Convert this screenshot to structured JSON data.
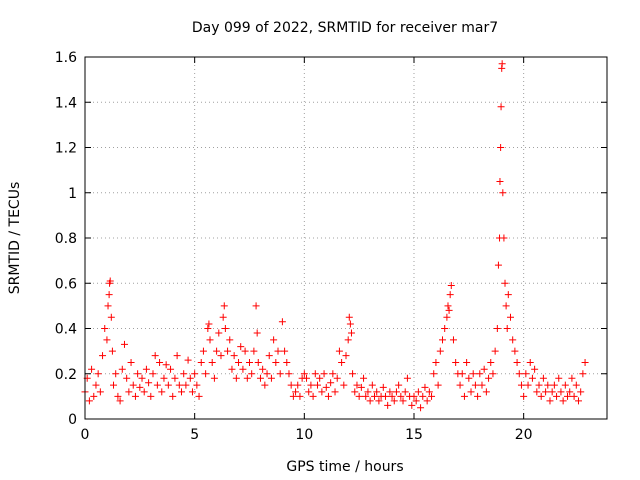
{
  "chart_data": {
    "type": "scatter",
    "title": "Day 099 of 2022, SRMTID for receiver mar7",
    "xlabel": "GPS time / hours",
    "ylabel": "SRMTID / TECUs",
    "xlim": [
      0,
      23.8
    ],
    "ylim": [
      0,
      1.6
    ],
    "x_ticks": [
      0,
      5,
      10,
      15,
      20
    ],
    "x_tick_labels": [
      "0",
      "5",
      "10",
      "15",
      "20"
    ],
    "y_ticks": [
      0,
      0.2,
      0.4,
      0.6,
      0.8,
      1.0,
      1.2,
      1.4,
      1.6
    ],
    "y_tick_labels": [
      "0",
      "0.2",
      "0.4",
      "0.6",
      "0.8",
      "1",
      "1.2",
      "1.4",
      "1.6"
    ],
    "grid": true,
    "marker": "plus",
    "color": "#ff0000",
    "series": [
      {
        "name": "SRMTID",
        "points": [
          [
            0.0,
            0.12
          ],
          [
            0.1,
            0.18
          ],
          [
            0.2,
            0.08
          ],
          [
            0.3,
            0.22
          ],
          [
            0.4,
            0.1
          ],
          [
            0.5,
            0.15
          ],
          [
            0.6,
            0.2
          ],
          [
            0.7,
            0.12
          ],
          [
            0.8,
            0.28
          ],
          [
            0.9,
            0.4
          ],
          [
            1.0,
            0.35
          ],
          [
            1.05,
            0.5
          ],
          [
            1.1,
            0.55
          ],
          [
            1.12,
            0.6
          ],
          [
            1.15,
            0.61
          ],
          [
            1.2,
            0.45
          ],
          [
            1.25,
            0.3
          ],
          [
            1.3,
            0.15
          ],
          [
            1.4,
            0.2
          ],
          [
            1.5,
            0.1
          ],
          [
            1.6,
            0.08
          ],
          [
            1.7,
            0.22
          ],
          [
            1.8,
            0.33
          ],
          [
            1.9,
            0.18
          ],
          [
            2.0,
            0.12
          ],
          [
            2.1,
            0.25
          ],
          [
            2.2,
            0.15
          ],
          [
            2.3,
            0.1
          ],
          [
            2.4,
            0.2
          ],
          [
            2.5,
            0.14
          ],
          [
            2.6,
            0.18
          ],
          [
            2.7,
            0.12
          ],
          [
            2.8,
            0.22
          ],
          [
            2.9,
            0.16
          ],
          [
            3.0,
            0.1
          ],
          [
            3.1,
            0.2
          ],
          [
            3.2,
            0.28
          ],
          [
            3.3,
            0.15
          ],
          [
            3.4,
            0.25
          ],
          [
            3.5,
            0.12
          ],
          [
            3.6,
            0.18
          ],
          [
            3.7,
            0.24
          ],
          [
            3.8,
            0.15
          ],
          [
            3.9,
            0.22
          ],
          [
            4.0,
            0.1
          ],
          [
            4.1,
            0.18
          ],
          [
            4.2,
            0.28
          ],
          [
            4.3,
            0.15
          ],
          [
            4.4,
            0.12
          ],
          [
            4.5,
            0.2
          ],
          [
            4.6,
            0.15
          ],
          [
            4.7,
            0.26
          ],
          [
            4.8,
            0.18
          ],
          [
            4.9,
            0.12
          ],
          [
            5.0,
            0.2
          ],
          [
            5.1,
            0.15
          ],
          [
            5.2,
            0.1
          ],
          [
            5.3,
            0.25
          ],
          [
            5.4,
            0.3
          ],
          [
            5.5,
            0.2
          ],
          [
            5.6,
            0.4
          ],
          [
            5.65,
            0.42
          ],
          [
            5.7,
            0.35
          ],
          [
            5.8,
            0.25
          ],
          [
            5.9,
            0.18
          ],
          [
            6.0,
            0.3
          ],
          [
            6.1,
            0.38
          ],
          [
            6.2,
            0.28
          ],
          [
            6.3,
            0.45
          ],
          [
            6.35,
            0.5
          ],
          [
            6.4,
            0.4
          ],
          [
            6.5,
            0.3
          ],
          [
            6.6,
            0.35
          ],
          [
            6.7,
            0.22
          ],
          [
            6.8,
            0.28
          ],
          [
            6.9,
            0.18
          ],
          [
            7.0,
            0.25
          ],
          [
            7.1,
            0.32
          ],
          [
            7.2,
            0.22
          ],
          [
            7.3,
            0.3
          ],
          [
            7.4,
            0.18
          ],
          [
            7.5,
            0.25
          ],
          [
            7.6,
            0.2
          ],
          [
            7.7,
            0.3
          ],
          [
            7.8,
            0.5
          ],
          [
            7.85,
            0.38
          ],
          [
            7.9,
            0.25
          ],
          [
            8.0,
            0.18
          ],
          [
            8.1,
            0.22
          ],
          [
            8.2,
            0.15
          ],
          [
            8.3,
            0.2
          ],
          [
            8.4,
            0.28
          ],
          [
            8.5,
            0.18
          ],
          [
            8.6,
            0.35
          ],
          [
            8.7,
            0.25
          ],
          [
            8.8,
            0.3
          ],
          [
            8.9,
            0.2
          ],
          [
            9.0,
            0.43
          ],
          [
            9.1,
            0.3
          ],
          [
            9.2,
            0.25
          ],
          [
            9.3,
            0.2
          ],
          [
            9.4,
            0.15
          ],
          [
            9.5,
            0.1
          ],
          [
            9.6,
            0.12
          ],
          [
            9.7,
            0.15
          ],
          [
            9.8,
            0.1
          ],
          [
            9.9,
            0.18
          ],
          [
            10.0,
            0.2
          ],
          [
            10.1,
            0.18
          ],
          [
            10.2,
            0.12
          ],
          [
            10.3,
            0.15
          ],
          [
            10.4,
            0.1
          ],
          [
            10.5,
            0.2
          ],
          [
            10.6,
            0.15
          ],
          [
            10.7,
            0.18
          ],
          [
            10.8,
            0.12
          ],
          [
            10.9,
            0.2
          ],
          [
            11.0,
            0.14
          ],
          [
            11.1,
            0.1
          ],
          [
            11.2,
            0.16
          ],
          [
            11.3,
            0.2
          ],
          [
            11.4,
            0.12
          ],
          [
            11.5,
            0.18
          ],
          [
            11.6,
            0.3
          ],
          [
            11.7,
            0.25
          ],
          [
            11.8,
            0.15
          ],
          [
            11.9,
            0.28
          ],
          [
            12.0,
            0.35
          ],
          [
            12.05,
            0.45
          ],
          [
            12.1,
            0.42
          ],
          [
            12.15,
            0.38
          ],
          [
            12.2,
            0.2
          ],
          [
            12.3,
            0.12
          ],
          [
            12.4,
            0.15
          ],
          [
            12.5,
            0.1
          ],
          [
            12.6,
            0.14
          ],
          [
            12.7,
            0.18
          ],
          [
            12.8,
            0.1
          ],
          [
            12.9,
            0.12
          ],
          [
            13.0,
            0.08
          ],
          [
            13.1,
            0.15
          ],
          [
            13.2,
            0.1
          ],
          [
            13.3,
            0.12
          ],
          [
            13.4,
            0.08
          ],
          [
            13.5,
            0.1
          ],
          [
            13.6,
            0.14
          ],
          [
            13.7,
            0.1
          ],
          [
            13.8,
            0.06
          ],
          [
            13.9,
            0.12
          ],
          [
            14.0,
            0.1
          ],
          [
            14.1,
            0.08
          ],
          [
            14.2,
            0.12
          ],
          [
            14.3,
            0.15
          ],
          [
            14.4,
            0.1
          ],
          [
            14.5,
            0.08
          ],
          [
            14.6,
            0.12
          ],
          [
            14.7,
            0.18
          ],
          [
            14.8,
            0.1
          ],
          [
            14.9,
            0.06
          ],
          [
            15.0,
            0.1
          ],
          [
            15.1,
            0.08
          ],
          [
            15.2,
            0.12
          ],
          [
            15.3,
            0.05
          ],
          [
            15.4,
            0.1
          ],
          [
            15.5,
            0.14
          ],
          [
            15.6,
            0.08
          ],
          [
            15.7,
            0.12
          ],
          [
            15.8,
            0.1
          ],
          [
            15.9,
            0.2
          ],
          [
            16.0,
            0.25
          ],
          [
            16.1,
            0.15
          ],
          [
            16.2,
            0.3
          ],
          [
            16.3,
            0.35
          ],
          [
            16.4,
            0.4
          ],
          [
            16.5,
            0.45
          ],
          [
            16.55,
            0.5
          ],
          [
            16.6,
            0.48
          ],
          [
            16.65,
            0.55
          ],
          [
            16.7,
            0.59
          ],
          [
            16.8,
            0.35
          ],
          [
            16.9,
            0.25
          ],
          [
            17.0,
            0.2
          ],
          [
            17.1,
            0.15
          ],
          [
            17.2,
            0.2
          ],
          [
            17.3,
            0.1
          ],
          [
            17.4,
            0.25
          ],
          [
            17.5,
            0.18
          ],
          [
            17.6,
            0.12
          ],
          [
            17.7,
            0.2
          ],
          [
            17.8,
            0.15
          ],
          [
            17.9,
            0.1
          ],
          [
            18.0,
            0.2
          ],
          [
            18.1,
            0.15
          ],
          [
            18.2,
            0.22
          ],
          [
            18.3,
            0.12
          ],
          [
            18.4,
            0.18
          ],
          [
            18.5,
            0.25
          ],
          [
            18.6,
            0.2
          ],
          [
            18.7,
            0.3
          ],
          [
            18.8,
            0.4
          ],
          [
            18.85,
            0.68
          ],
          [
            18.9,
            0.8
          ],
          [
            18.92,
            1.05
          ],
          [
            18.95,
            1.2
          ],
          [
            18.97,
            1.38
          ],
          [
            19.0,
            1.55
          ],
          [
            19.02,
            1.57
          ],
          [
            19.05,
            1.0
          ],
          [
            19.1,
            0.8
          ],
          [
            19.15,
            0.6
          ],
          [
            19.2,
            0.5
          ],
          [
            19.25,
            0.4
          ],
          [
            19.3,
            0.55
          ],
          [
            19.4,
            0.45
          ],
          [
            19.5,
            0.35
          ],
          [
            19.6,
            0.3
          ],
          [
            19.7,
            0.25
          ],
          [
            19.8,
            0.2
          ],
          [
            19.9,
            0.15
          ],
          [
            20.0,
            0.1
          ],
          [
            20.1,
            0.2
          ],
          [
            20.2,
            0.15
          ],
          [
            20.3,
            0.25
          ],
          [
            20.4,
            0.18
          ],
          [
            20.5,
            0.22
          ],
          [
            20.6,
            0.12
          ],
          [
            20.7,
            0.15
          ],
          [
            20.8,
            0.1
          ],
          [
            20.9,
            0.18
          ],
          [
            21.0,
            0.12
          ],
          [
            21.1,
            0.15
          ],
          [
            21.2,
            0.08
          ],
          [
            21.3,
            0.12
          ],
          [
            21.4,
            0.15
          ],
          [
            21.5,
            0.1
          ],
          [
            21.6,
            0.18
          ],
          [
            21.7,
            0.12
          ],
          [
            21.8,
            0.08
          ],
          [
            21.9,
            0.15
          ],
          [
            22.0,
            0.1
          ],
          [
            22.1,
            0.12
          ],
          [
            22.2,
            0.18
          ],
          [
            22.3,
            0.1
          ],
          [
            22.4,
            0.15
          ],
          [
            22.5,
            0.08
          ],
          [
            22.6,
            0.12
          ],
          [
            22.7,
            0.2
          ],
          [
            22.8,
            0.25
          ]
        ]
      }
    ]
  }
}
